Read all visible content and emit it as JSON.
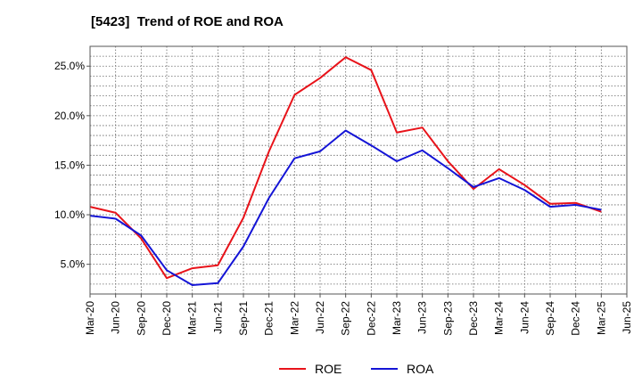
{
  "chart_data": {
    "type": "line",
    "title": "[5423]  Trend of ROE and ROA",
    "x": [
      "Mar-20",
      "Jun-20",
      "Sep-20",
      "Dec-20",
      "Mar-21",
      "Jun-21",
      "Sep-21",
      "Dec-21",
      "Mar-22",
      "Jun-22",
      "Sep-22",
      "Dec-22",
      "Mar-23",
      "Jun-23",
      "Sep-23",
      "Dec-23",
      "Mar-24",
      "Jun-24",
      "Sep-24",
      "Dec-24",
      "Mar-25"
    ],
    "x_tick_labels": [
      "Mar-20",
      "Jun-20",
      "Sep-20",
      "Dec-20",
      "Mar-21",
      "Jun-21",
      "Sep-21",
      "Dec-21",
      "Mar-22",
      "Jun-22",
      "Sep-22",
      "Dec-22",
      "Mar-23",
      "Jun-23",
      "Sep-23",
      "Dec-23",
      "Mar-24",
      "Jun-24",
      "Sep-24",
      "Dec-24",
      "Mar-25",
      "Jun-25"
    ],
    "y_ticks": [
      5,
      10,
      15,
      20,
      25
    ],
    "y_tick_labels": [
      "5.0%",
      "10.0%",
      "15.0%",
      "20.0%",
      "25.0%"
    ],
    "ylim": [
      2,
      27
    ],
    "grid": true,
    "legend_position": "bottom-center",
    "series": [
      {
        "name": "ROE",
        "color": "#e8131a",
        "values": [
          10.8,
          10.2,
          7.6,
          3.6,
          4.6,
          4.9,
          9.7,
          16.4,
          22.1,
          23.8,
          25.9,
          24.6,
          18.3,
          18.8,
          15.4,
          12.6,
          14.6,
          13.0,
          11.1,
          11.2,
          10.3
        ]
      },
      {
        "name": "ROA",
        "color": "#1414d6",
        "values": [
          9.9,
          9.6,
          7.9,
          4.4,
          2.9,
          3.1,
          6.8,
          11.7,
          15.7,
          16.4,
          18.5,
          17.0,
          15.4,
          16.5,
          14.7,
          12.8,
          13.7,
          12.5,
          10.8,
          11.0,
          10.5
        ]
      }
    ]
  }
}
